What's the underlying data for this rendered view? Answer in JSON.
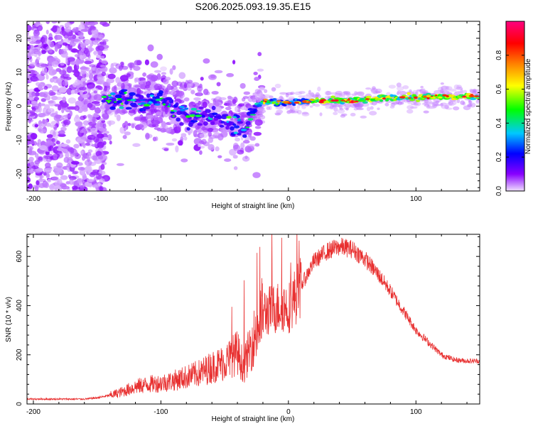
{
  "figure": {
    "title": "S206.2025.093.19.35.E15"
  },
  "chart_data": [
    {
      "type": "heatmap",
      "title": "S206.2025.093.19.35.E15",
      "xlabel": "Height of straight line (km)",
      "ylabel": "Frequency (Hz)",
      "xlim": [
        -205,
        150
      ],
      "ylim": [
        -25,
        25
      ],
      "xticks": [
        -200,
        -100,
        0,
        100
      ],
      "yticks": [
        -20,
        -10,
        0,
        10,
        20
      ],
      "colorbar": {
        "label": "Normalized spectral amplitude",
        "range": [
          0,
          1
        ],
        "ticks": [
          0.0,
          0.2,
          0.4,
          0.6,
          0.8
        ],
        "tick_labels": [
          "0.0",
          "0.2",
          "0.4",
          "0.6",
          "0.8"
        ],
        "colormap": [
          "#f0e0ff",
          "#8800ff",
          "#0000ff",
          "#00c8ff",
          "#00ff00",
          "#ffff00",
          "#ff8000",
          "#ff0000",
          "#ff0080"
        ]
      },
      "ridge": {
        "x": [
          -145,
          -130,
          -115,
          -100,
          -90,
          -80,
          -70,
          -60,
          -50,
          -40,
          -35,
          -30,
          -25,
          -20,
          -10,
          0,
          20,
          40,
          60,
          80,
          100,
          120,
          150
        ],
        "y": [
          2,
          2,
          1.5,
          2,
          -1,
          -2,
          -3,
          -3,
          -4,
          -5,
          -7,
          -3,
          0,
          1.5,
          1,
          1,
          1.5,
          1.5,
          1.8,
          2.5,
          2.5,
          2.8,
          2.8
        ]
      }
    },
    {
      "type": "line",
      "xlabel": "Height of straight line (km)",
      "ylabel": "SNR (10 * v/v)",
      "xlim": [
        -205,
        150
      ],
      "ylim": [
        0,
        690
      ],
      "xticks": [
        -200,
        -100,
        0,
        100
      ],
      "yticks": [
        0,
        200,
        400,
        600
      ],
      "series": [
        {
          "color": "#e83030",
          "x": [
            -205,
            -180,
            -160,
            -150,
            -140,
            -130,
            -120,
            -110,
            -100,
            -90,
            -80,
            -70,
            -60,
            -50,
            -40,
            -35,
            -30,
            -25,
            -20,
            -15,
            -10,
            -5,
            0,
            10,
            20,
            30,
            40,
            50,
            60,
            70,
            80,
            90,
            100,
            110,
            120,
            130,
            140,
            150
          ],
          "y": [
            20,
            20,
            20,
            25,
            35,
            50,
            70,
            80,
            85,
            95,
            110,
            125,
            150,
            170,
            210,
            150,
            230,
            300,
            370,
            380,
            390,
            400,
            390,
            480,
            580,
            620,
            640,
            630,
            590,
            530,
            460,
            380,
            300,
            250,
            200,
            180,
            175,
            175
          ]
        }
      ]
    }
  ]
}
